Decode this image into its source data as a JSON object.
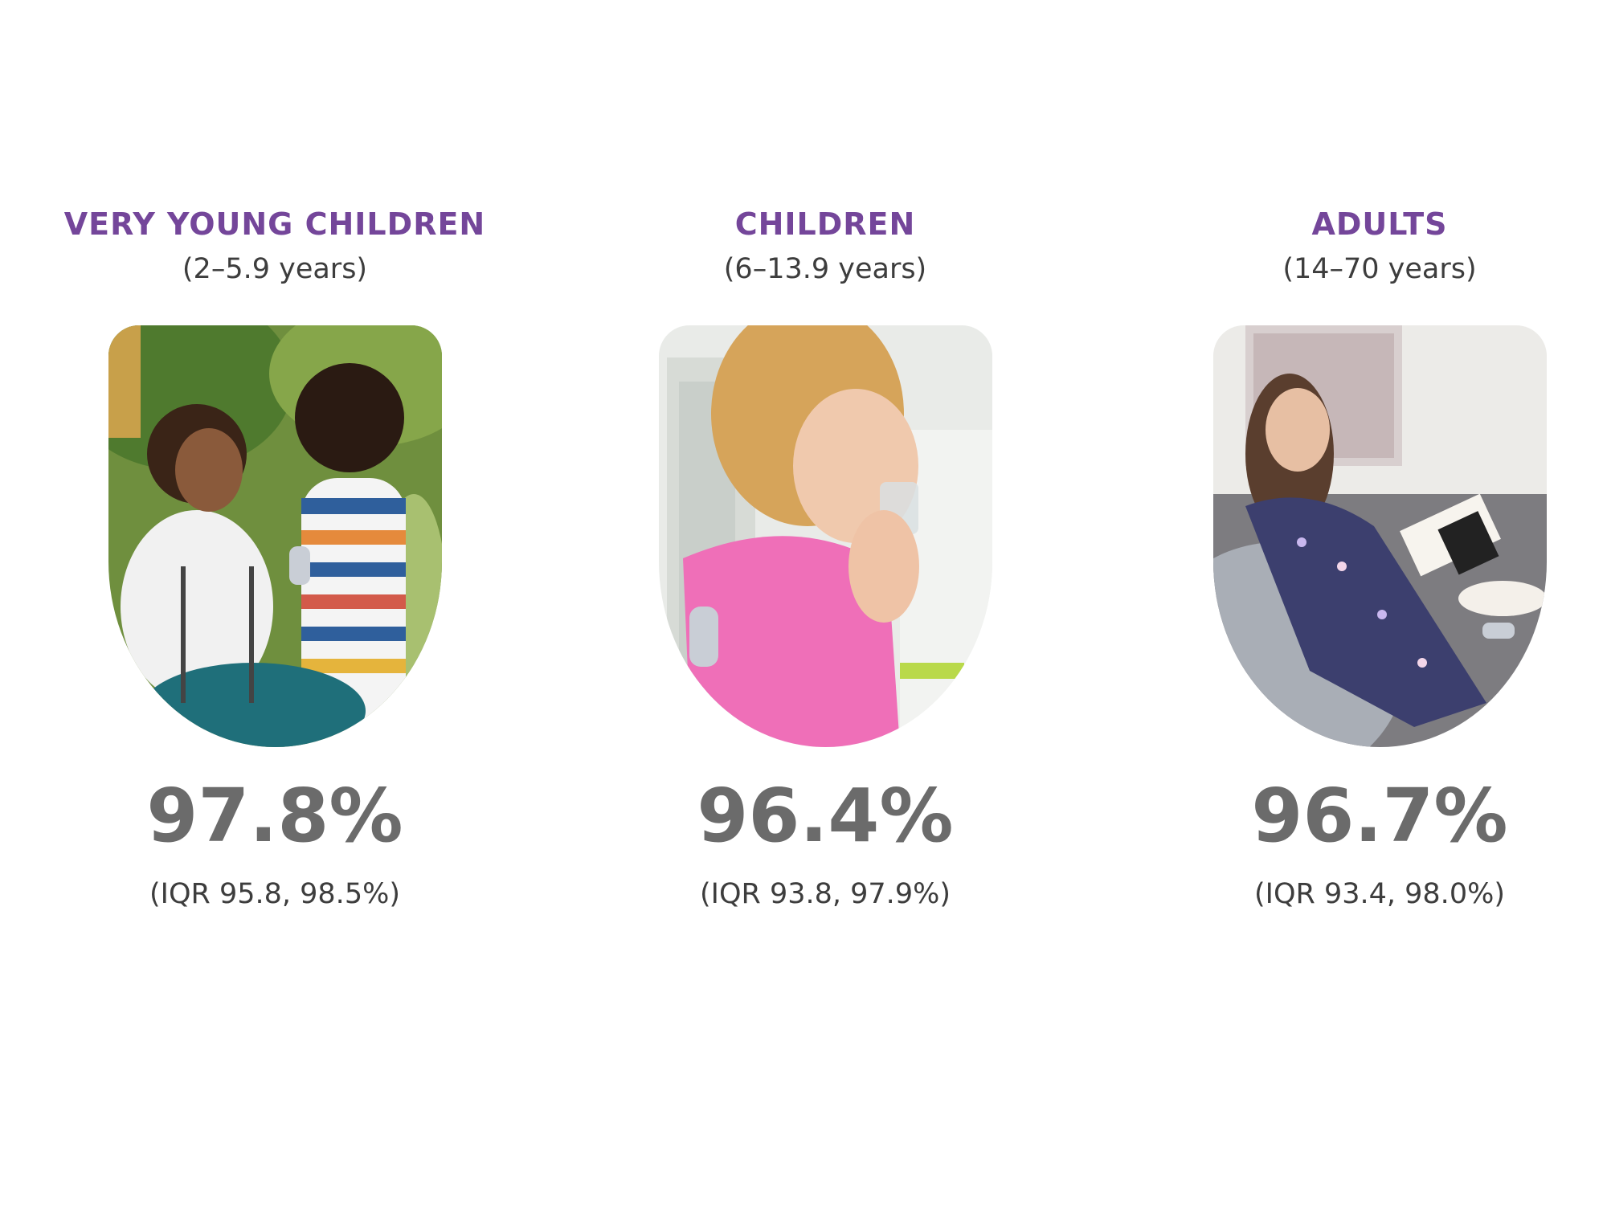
{
  "groups": [
    {
      "title": "VERY YOUNG CHILDREN",
      "range": "(2–5.9 years)",
      "photo_subject": "woman-and-child-outdoors",
      "value": "97.8%",
      "iqr": "(IQR 95.8, 98.5%)"
    },
    {
      "title": "CHILDREN",
      "range": "(6–13.9 years)",
      "photo_subject": "girl-drinking-water",
      "value": "96.4%",
      "iqr": "(IQR 93.8, 97.9%)"
    },
    {
      "title": "ADULTS",
      "range": "(14–70 years)",
      "photo_subject": "woman-reading-on-sofa",
      "value": "96.7%",
      "iqr": "(IQR 93.4, 98.0%)"
    }
  ],
  "colors": {
    "title": "#74469a",
    "stat": "#6b6b6b",
    "text": "#3d3d3d",
    "background": "#ffffff"
  }
}
